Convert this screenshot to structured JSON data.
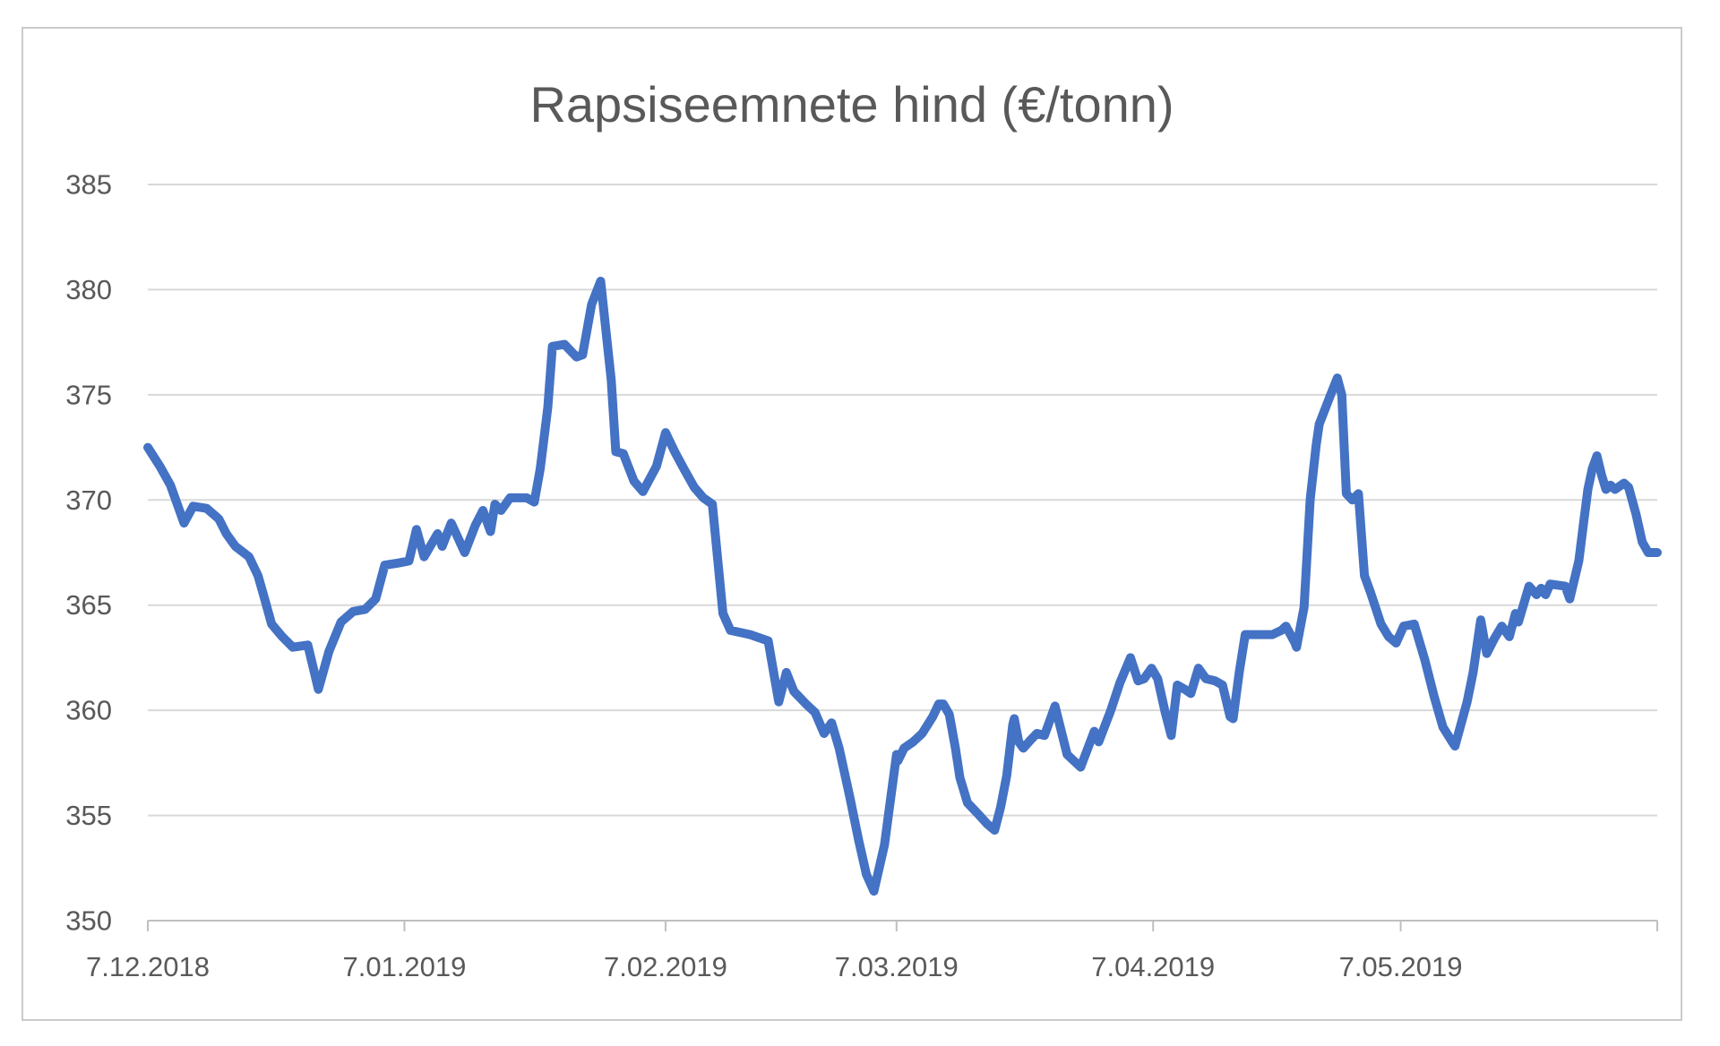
{
  "chart_data": {
    "type": "line",
    "title": "Rapsiseemnete hind (€/tonn)",
    "xlabel": "",
    "ylabel": "",
    "ylim": [
      350,
      385
    ],
    "yticks": [
      350,
      355,
      360,
      365,
      370,
      375,
      380,
      385
    ],
    "grid": true,
    "legend_position": "none",
    "line_color": "#4472C4",
    "gridline_color": "#D9D9D9",
    "axis_color": "#BFBFBF",
    "text_color": "#595959",
    "xticks": [
      {
        "label": "7.12.2018",
        "pos": 0.0
      },
      {
        "label": "7.01.2019",
        "pos": 0.17
      },
      {
        "label": "7.02.2019",
        "pos": 0.343
      },
      {
        "label": "7.03.2019",
        "pos": 0.496
      },
      {
        "label": "7.04.2019",
        "pos": 0.666
      },
      {
        "label": "7.05.2019",
        "pos": 0.83
      }
    ],
    "extra_tick_positions": [
      1.0
    ],
    "points": [
      [
        0.0,
        372.5
      ],
      [
        0.008,
        371.6
      ],
      [
        0.015,
        370.7
      ],
      [
        0.024,
        368.9
      ],
      [
        0.03,
        369.7
      ],
      [
        0.039,
        369.6
      ],
      [
        0.047,
        369.1
      ],
      [
        0.052,
        368.4
      ],
      [
        0.058,
        367.8
      ],
      [
        0.067,
        367.3
      ],
      [
        0.073,
        366.4
      ],
      [
        0.077,
        365.4
      ],
      [
        0.082,
        364.1
      ],
      [
        0.089,
        363.5
      ],
      [
        0.096,
        363.0
      ],
      [
        0.106,
        363.1
      ],
      [
        0.113,
        361.0
      ],
      [
        0.12,
        362.8
      ],
      [
        0.128,
        364.2
      ],
      [
        0.136,
        364.7
      ],
      [
        0.144,
        364.8
      ],
      [
        0.151,
        365.3
      ],
      [
        0.157,
        366.9
      ],
      [
        0.166,
        367.0
      ],
      [
        0.173,
        367.1
      ],
      [
        0.178,
        368.6
      ],
      [
        0.183,
        367.3
      ],
      [
        0.192,
        368.4
      ],
      [
        0.195,
        367.8
      ],
      [
        0.201,
        368.9
      ],
      [
        0.21,
        367.5
      ],
      [
        0.217,
        368.8
      ],
      [
        0.222,
        369.5
      ],
      [
        0.227,
        368.5
      ],
      [
        0.23,
        369.8
      ],
      [
        0.234,
        369.5
      ],
      [
        0.24,
        370.1
      ],
      [
        0.251,
        370.1
      ],
      [
        0.256,
        369.9
      ],
      [
        0.26,
        371.5
      ],
      [
        0.265,
        374.4
      ],
      [
        0.268,
        377.3
      ],
      [
        0.276,
        377.4
      ],
      [
        0.284,
        376.8
      ],
      [
        0.288,
        376.9
      ],
      [
        0.294,
        379.3
      ],
      [
        0.3,
        380.4
      ],
      [
        0.307,
        375.7
      ],
      [
        0.31,
        372.3
      ],
      [
        0.315,
        372.2
      ],
      [
        0.322,
        370.9
      ],
      [
        0.328,
        370.4
      ],
      [
        0.337,
        371.6
      ],
      [
        0.343,
        373.2
      ],
      [
        0.349,
        372.3
      ],
      [
        0.355,
        371.5
      ],
      [
        0.362,
        370.6
      ],
      [
        0.368,
        370.1
      ],
      [
        0.374,
        369.8
      ],
      [
        0.381,
        364.6
      ],
      [
        0.386,
        363.8
      ],
      [
        0.399,
        363.6
      ],
      [
        0.411,
        363.3
      ],
      [
        0.418,
        360.4
      ],
      [
        0.423,
        361.8
      ],
      [
        0.428,
        360.9
      ],
      [
        0.436,
        360.3
      ],
      [
        0.442,
        359.9
      ],
      [
        0.448,
        358.9
      ],
      [
        0.453,
        359.4
      ],
      [
        0.458,
        358.2
      ],
      [
        0.465,
        355.9
      ],
      [
        0.471,
        353.8
      ],
      [
        0.476,
        352.2
      ],
      [
        0.481,
        351.4
      ],
      [
        0.488,
        353.6
      ],
      [
        0.491,
        355.2
      ],
      [
        0.496,
        357.9
      ],
      [
        0.497,
        357.6
      ],
      [
        0.501,
        358.2
      ],
      [
        0.507,
        358.5
      ],
      [
        0.513,
        358.9
      ],
      [
        0.52,
        359.7
      ],
      [
        0.524,
        360.3
      ],
      [
        0.527,
        360.3
      ],
      [
        0.531,
        359.8
      ],
      [
        0.535,
        358.2
      ],
      [
        0.538,
        356.8
      ],
      [
        0.543,
        355.6
      ],
      [
        0.547,
        355.3
      ],
      [
        0.551,
        355.0
      ],
      [
        0.556,
        354.6
      ],
      [
        0.561,
        354.3
      ],
      [
        0.565,
        355.4
      ],
      [
        0.569,
        356.9
      ],
      [
        0.573,
        359.3
      ],
      [
        0.574,
        359.6
      ],
      [
        0.577,
        358.5
      ],
      [
        0.58,
        358.2
      ],
      [
        0.585,
        358.6
      ],
      [
        0.589,
        358.9
      ],
      [
        0.594,
        358.8
      ],
      [
        0.601,
        360.2
      ],
      [
        0.609,
        357.9
      ],
      [
        0.618,
        357.3
      ],
      [
        0.627,
        359.0
      ],
      [
        0.63,
        358.5
      ],
      [
        0.638,
        360.0
      ],
      [
        0.644,
        361.3
      ],
      [
        0.651,
        362.5
      ],
      [
        0.656,
        361.4
      ],
      [
        0.66,
        361.5
      ],
      [
        0.665,
        362.0
      ],
      [
        0.669,
        361.5
      ],
      [
        0.674,
        359.9
      ],
      [
        0.678,
        358.8
      ],
      [
        0.682,
        361.2
      ],
      [
        0.687,
        361.0
      ],
      [
        0.691,
        360.8
      ],
      [
        0.696,
        362.0
      ],
      [
        0.701,
        361.5
      ],
      [
        0.707,
        361.4
      ],
      [
        0.712,
        361.2
      ],
      [
        0.717,
        359.7
      ],
      [
        0.719,
        359.6
      ],
      [
        0.723,
        361.8
      ],
      [
        0.727,
        363.6
      ],
      [
        0.736,
        363.6
      ],
      [
        0.745,
        363.6
      ],
      [
        0.751,
        363.8
      ],
      [
        0.754,
        364.0
      ],
      [
        0.76,
        363.2
      ],
      [
        0.761,
        363.0
      ],
      [
        0.766,
        364.9
      ],
      [
        0.77,
        370.0
      ],
      [
        0.774,
        372.6
      ],
      [
        0.776,
        373.6
      ],
      [
        0.783,
        374.9
      ],
      [
        0.788,
        375.8
      ],
      [
        0.791,
        375.0
      ],
      [
        0.794,
        370.3
      ],
      [
        0.798,
        370.0
      ],
      [
        0.802,
        370.3
      ],
      [
        0.806,
        366.4
      ],
      [
        0.81,
        365.6
      ],
      [
        0.817,
        364.1
      ],
      [
        0.822,
        363.5
      ],
      [
        0.827,
        363.2
      ],
      [
        0.832,
        364.0
      ],
      [
        0.839,
        364.1
      ],
      [
        0.846,
        362.4
      ],
      [
        0.852,
        360.7
      ],
      [
        0.858,
        359.2
      ],
      [
        0.865,
        358.4
      ],
      [
        0.866,
        358.3
      ],
      [
        0.874,
        360.4
      ],
      [
        0.878,
        361.8
      ],
      [
        0.883,
        364.3
      ],
      [
        0.887,
        362.7
      ],
      [
        0.892,
        363.4
      ],
      [
        0.897,
        364.0
      ],
      [
        0.902,
        363.5
      ],
      [
        0.906,
        364.6
      ],
      [
        0.908,
        364.2
      ],
      [
        0.915,
        365.9
      ],
      [
        0.92,
        365.5
      ],
      [
        0.923,
        365.8
      ],
      [
        0.926,
        365.5
      ],
      [
        0.929,
        366.0
      ],
      [
        0.939,
        365.9
      ],
      [
        0.942,
        365.3
      ],
      [
        0.948,
        367.1
      ],
      [
        0.951,
        368.8
      ],
      [
        0.954,
        370.5
      ],
      [
        0.957,
        371.5
      ],
      [
        0.96,
        372.1
      ],
      [
        0.963,
        371.2
      ],
      [
        0.966,
        370.5
      ],
      [
        0.969,
        370.7
      ],
      [
        0.972,
        370.5
      ],
      [
        0.978,
        370.8
      ],
      [
        0.981,
        370.6
      ],
      [
        0.986,
        369.3
      ],
      [
        0.99,
        368.0
      ],
      [
        0.994,
        367.5
      ],
      [
        1.0,
        367.5
      ]
    ]
  }
}
